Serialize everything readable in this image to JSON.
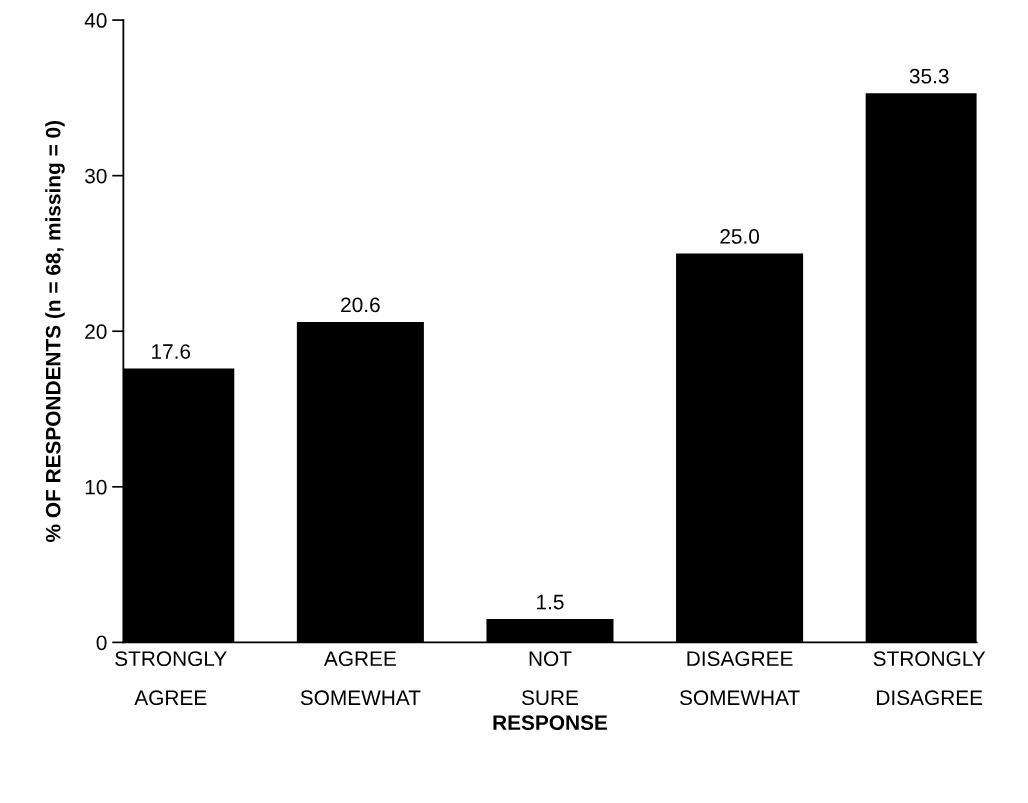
{
  "chart_data": {
    "type": "bar",
    "xlabel": "RESPONSE",
    "ylabel": "% OF RESPONDENTS (n = 68, missing = 0)",
    "categories": [
      "STRONGLY\nAGREE",
      "AGREE\nSOMEWHAT",
      "NOT\nSURE",
      "DISAGREE\nSOMEWHAT",
      "STRONGLY\nDISAGREE"
    ],
    "values": [
      17.6,
      20.6,
      1.5,
      25.0,
      35.3
    ],
    "value_labels": [
      "17.6",
      "20.6",
      "1.5",
      "25.0",
      "35.3"
    ],
    "color": "#000000",
    "ylim": [
      0,
      40
    ],
    "yticks": [
      0,
      10,
      20,
      30,
      40
    ],
    "grid": false,
    "legend": false
  }
}
